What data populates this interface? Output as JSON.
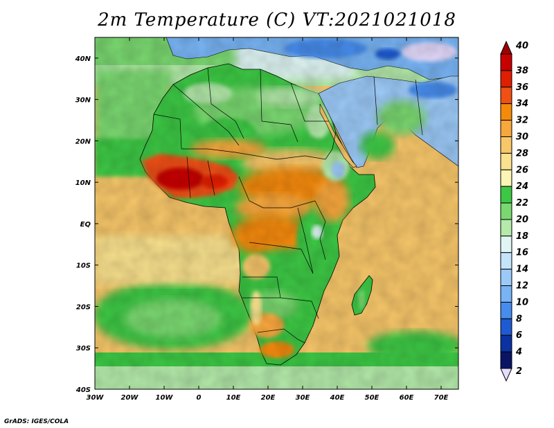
{
  "title": "2m Temperature (C) VT:2021021018",
  "credit": "GrADS: IGES/COLA",
  "map": {
    "projection": "lat-lon",
    "lon_range": [
      -30,
      75
    ],
    "lat_range": [
      -40,
      45
    ],
    "lat_ticks": [
      {
        "value": 40,
        "label": "40N"
      },
      {
        "value": 30,
        "label": "30N"
      },
      {
        "value": 20,
        "label": "20N"
      },
      {
        "value": 10,
        "label": "10N"
      },
      {
        "value": 0,
        "label": "EQ"
      },
      {
        "value": -10,
        "label": "10S"
      },
      {
        "value": -20,
        "label": "20S"
      },
      {
        "value": -30,
        "label": "30S"
      },
      {
        "value": -40,
        "label": "40S"
      }
    ],
    "lon_ticks": [
      {
        "value": -30,
        "label": "30W"
      },
      {
        "value": -20,
        "label": "20W"
      },
      {
        "value": -10,
        "label": "10W"
      },
      {
        "value": 0,
        "label": "0"
      },
      {
        "value": 10,
        "label": "10E"
      },
      {
        "value": 20,
        "label": "20E"
      },
      {
        "value": 30,
        "label": "30E"
      },
      {
        "value": 40,
        "label": "40E"
      },
      {
        "value": 50,
        "label": "50E"
      },
      {
        "value": 60,
        "label": "60E"
      },
      {
        "value": 70,
        "label": "70E"
      }
    ]
  },
  "colorbar": {
    "levels": [
      40,
      38,
      36,
      34,
      32,
      30,
      28,
      26,
      24,
      22,
      20,
      18,
      16,
      14,
      12,
      10,
      8,
      6,
      4,
      2
    ],
    "colors": [
      "#a00000",
      "#c80000",
      "#e01e00",
      "#f05014",
      "#f58a0a",
      "#f8a73c",
      "#f8c76a",
      "#fae28e",
      "#fdf5b4",
      "#3cc844",
      "#7ad870",
      "#b4eaaa",
      "#dff6f4",
      "#c4e4fc",
      "#9ccaf8",
      "#78b4f4",
      "#468cec",
      "#1e5ad2",
      "#0a32a0",
      "#0a1464"
    ],
    "over_color": "#a00000",
    "under_color": "#e6dcff"
  }
}
